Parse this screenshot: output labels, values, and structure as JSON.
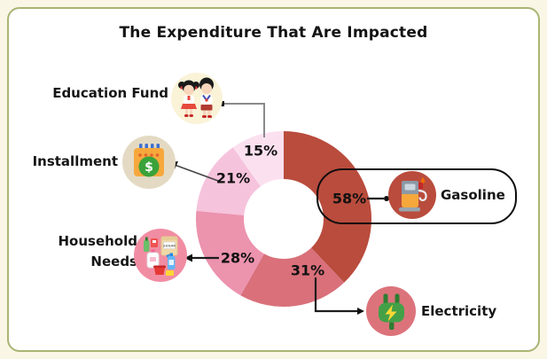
{
  "title": "The Expenditure That Are Impacted",
  "chart_data": {
    "type": "pie",
    "subtype": "donut",
    "title": "The Expenditure That Are Impacted",
    "unit": "%",
    "order": "clockwise-from-top",
    "segments": [
      {
        "label": "Gasoline",
        "value": 58,
        "pct_label": "58%",
        "color": "#B94C3D",
        "icon": "fuel-pump-icon",
        "icon_bg": "#B94C3D",
        "highlighted": true
      },
      {
        "label": "Electricity",
        "value": 31,
        "pct_label": "31%",
        "color": "#D9707A",
        "icon": "power-plug-icon",
        "icon_bg": "#DC737B",
        "highlighted": false
      },
      {
        "label": "Household Needs",
        "value": 28,
        "pct_label": "28%",
        "color": "#EC93AE",
        "icon": "household-supplies-icon",
        "icon_bg": "#F18DA3",
        "highlighted": false
      },
      {
        "label": "Installment",
        "value": 21,
        "pct_label": "21%",
        "color": "#F6C3DC",
        "icon": "calendar-money-icon",
        "icon_bg": "#E4DAC4",
        "highlighted": false
      },
      {
        "label": "Education Fund",
        "value": 15,
        "pct_label": "15%",
        "color": "#FBE1F0",
        "icon": "school-children-icon",
        "icon_bg": "#FAF3D8",
        "highlighted": false
      }
    ],
    "annotations": {
      "highlight_outline_color": "#0d0d0d",
      "highlighted_segment": "Gasoline"
    }
  },
  "icon_text": {
    "installment_glyph": "$",
    "sugar_bag_text": "SUGAR"
  },
  "frame": {
    "card_bg": "#FFFFFF",
    "card_border": "#A9B475",
    "page_bg": "#FAF6E5"
  }
}
